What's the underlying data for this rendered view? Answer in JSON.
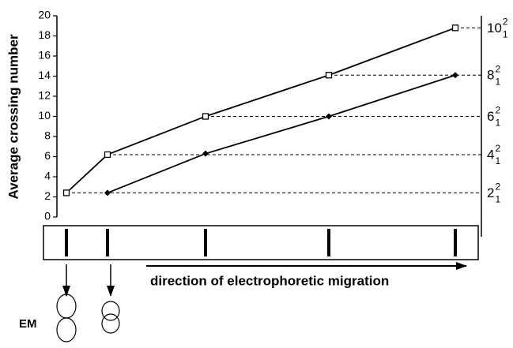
{
  "chart_data": {
    "type": "line",
    "ylabel": "Average crossing number",
    "ylim": [
      0,
      20
    ],
    "yticks": [
      0,
      2,
      4,
      6,
      8,
      10,
      12,
      14,
      16,
      18,
      20
    ],
    "categories": [
      null,
      null,
      null,
      null,
      null
    ],
    "series": [
      {
        "marker": "square-open",
        "color": "#000000",
        "values": [
          2.4,
          6.2,
          10,
          14.1,
          18.8
        ]
      },
      {
        "marker": "diamond-filled",
        "color": "#000000",
        "values": [
          null,
          2.4,
          6.3,
          10,
          14.1
        ]
      }
    ],
    "knot_ticks": [
      {
        "value": 2.4,
        "number": "2",
        "sup": "2",
        "sub": "1"
      },
      {
        "value": 6.2,
        "number": "4",
        "sup": "2",
        "sub": "1"
      },
      {
        "value": 10,
        "number": "6",
        "sup": "2",
        "sub": "1"
      },
      {
        "value": 14.1,
        "number": "8",
        "sup": "2",
        "sub": "1"
      },
      {
        "value": 18.8,
        "number": "10",
        "sup": "2",
        "sub": "1"
      }
    ],
    "annotation": "direction of electrophoretic migration",
    "em_label": "EM"
  }
}
